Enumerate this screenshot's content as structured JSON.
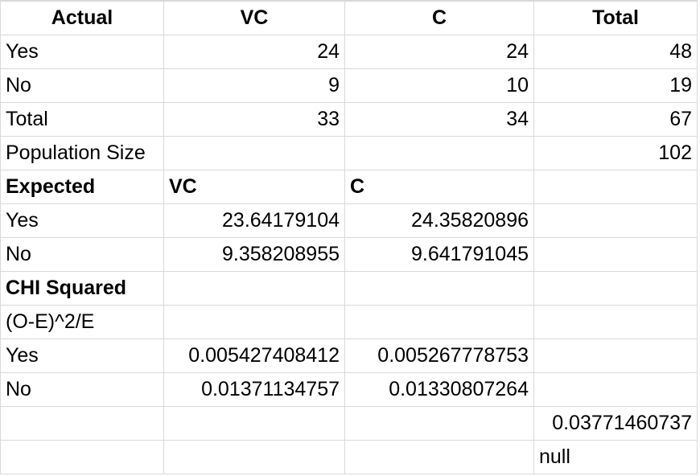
{
  "rows": [
    [
      "Actual",
      "VC",
      "C",
      "Total"
    ],
    [
      "Yes",
      "24",
      "24",
      "48"
    ],
    [
      "No",
      "9",
      "10",
      "19"
    ],
    [
      "Total",
      "33",
      "34",
      "67"
    ],
    [
      "Population Size",
      "",
      "",
      "102"
    ],
    [
      "Expected",
      "VC",
      "C",
      ""
    ],
    [
      "Yes",
      "23.64179104",
      "24.35820896",
      ""
    ],
    [
      "No",
      "9.358208955",
      "9.641791045",
      ""
    ],
    [
      "CHI Squared",
      "",
      "",
      ""
    ],
    [
      "(O-E)^2/E",
      "",
      "",
      ""
    ],
    [
      "Yes",
      "0.005427408412",
      "0.005267778753",
      ""
    ],
    [
      "No",
      "0.01371134757",
      "0.01330807264",
      ""
    ],
    [
      "",
      "",
      "",
      "0.03771460737"
    ],
    [
      "",
      "",
      "",
      "null"
    ]
  ]
}
